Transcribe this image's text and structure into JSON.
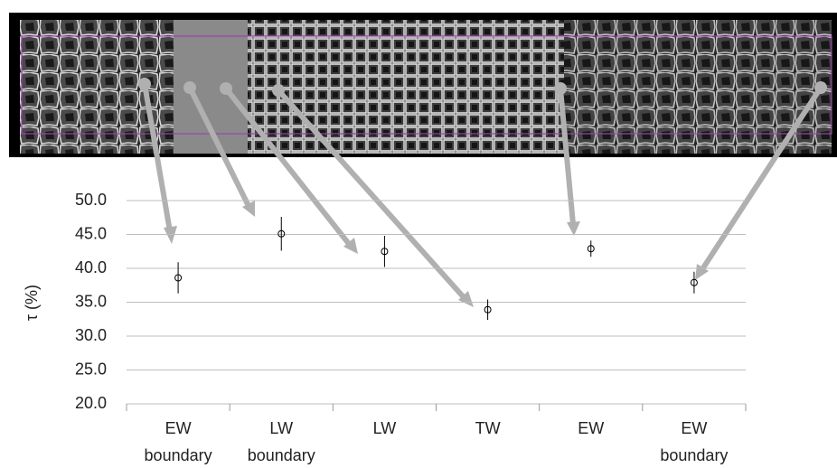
{
  "chart_data": {
    "type": "errorbar",
    "ylabel": "τ (%)",
    "categories": [
      "EW boundary",
      "LW boundary",
      "LW",
      "TW",
      "EW",
      "EW boundary"
    ],
    "values": [
      38.6,
      45.1,
      42.5,
      33.9,
      42.9,
      37.9
    ],
    "errors": [
      2.3,
      2.5,
      2.3,
      1.5,
      1.2,
      1.6
    ],
    "color": "#000000",
    "ylim": [
      20,
      50
    ],
    "yticks": [
      {
        "value": 20,
        "label": "20.0"
      },
      {
        "value": 25,
        "label": "25.0"
      },
      {
        "value": 30,
        "label": "30.0"
      },
      {
        "value": 35,
        "label": "35.0"
      },
      {
        "value": 40,
        "label": "40.0"
      },
      {
        "value": 45,
        "label": "45.0"
      },
      {
        "value": 50,
        "label": "50.0"
      }
    ],
    "grid": true
  }
}
